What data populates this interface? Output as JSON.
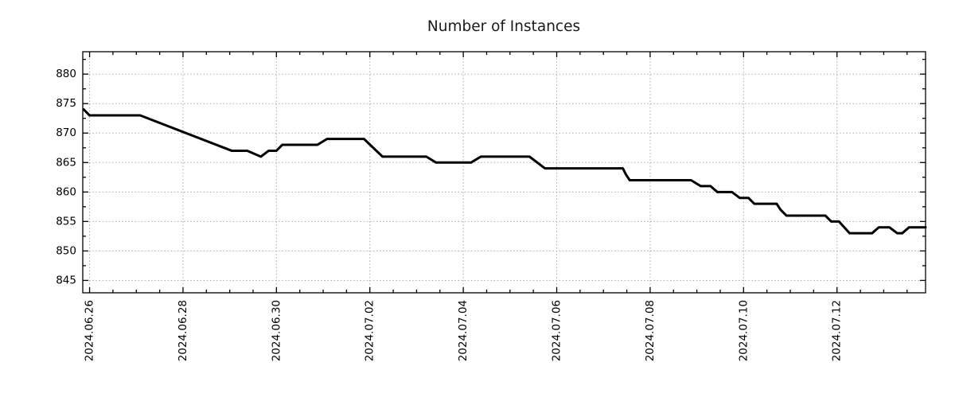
{
  "chart_data": {
    "type": "line",
    "title": "Number of Instances",
    "xlabel": "",
    "ylabel": "",
    "legend": null,
    "background_color": "#ffffff",
    "grid": {
      "show": true,
      "style": "dotted",
      "color": "#a9a9a9"
    },
    "axes_color": "#000000",
    "ylim": [
      842.9,
      883.8
    ],
    "xlim": [
      "2024-06-25 20:30",
      "2024-07-13 21:30"
    ],
    "yticks": [
      845,
      850,
      855,
      860,
      865,
      870,
      875,
      880
    ],
    "y_minor_step": 2.5,
    "x_minor_step_days": 0.5,
    "xticks": [
      {
        "date": "2024-06-26",
        "label": "2024.06.26"
      },
      {
        "date": "2024-06-28",
        "label": "2024.06.28"
      },
      {
        "date": "2024-06-30",
        "label": "2024.06.30"
      },
      {
        "date": "2024-07-02",
        "label": "2024.07.02"
      },
      {
        "date": "2024-07-04",
        "label": "2024.07.04"
      },
      {
        "date": "2024-07-06",
        "label": "2024.07.06"
      },
      {
        "date": "2024-07-08",
        "label": "2024.07.08"
      },
      {
        "date": "2024-07-10",
        "label": "2024.07.10"
      },
      {
        "date": "2024-07-12",
        "label": "2024.07.12"
      }
    ],
    "series": [
      {
        "name": "Number of Instances",
        "color": "#000000",
        "line_width": 3,
        "points": [
          [
            "2024-06-25 21:00",
            874
          ],
          [
            "2024-06-26 00:00",
            873
          ],
          [
            "2024-06-27 02:00",
            873
          ],
          [
            "2024-06-29 01:00",
            867
          ],
          [
            "2024-06-29 09:00",
            867
          ],
          [
            "2024-06-29 16:00",
            866
          ],
          [
            "2024-06-29 20:00",
            867
          ],
          [
            "2024-06-30 00:00",
            867
          ],
          [
            "2024-06-30 03:00",
            868
          ],
          [
            "2024-06-30 21:00",
            868
          ],
          [
            "2024-07-01 02:00",
            869
          ],
          [
            "2024-07-01 21:00",
            869
          ],
          [
            "2024-07-02 06:30",
            866
          ],
          [
            "2024-07-03 05:00",
            866
          ],
          [
            "2024-07-03 10:00",
            865
          ],
          [
            "2024-07-04 04:00",
            865
          ],
          [
            "2024-07-04 09:00",
            866
          ],
          [
            "2024-07-05 10:00",
            866
          ],
          [
            "2024-07-05 18:00",
            864
          ],
          [
            "2024-07-07 10:00",
            864
          ],
          [
            "2024-07-07 11:30",
            863
          ],
          [
            "2024-07-07 13:30",
            862
          ],
          [
            "2024-07-08 21:00",
            862
          ],
          [
            "2024-07-09 02:00",
            861
          ],
          [
            "2024-07-09 07:00",
            861
          ],
          [
            "2024-07-09 10:30",
            860
          ],
          [
            "2024-07-09 18:00",
            860
          ],
          [
            "2024-07-09 22:00",
            859
          ],
          [
            "2024-07-10 02:30",
            859
          ],
          [
            "2024-07-10 05:30",
            858
          ],
          [
            "2024-07-10 17:00",
            858
          ],
          [
            "2024-07-10 19:00",
            857
          ],
          [
            "2024-07-10 22:00",
            856
          ],
          [
            "2024-07-11 18:00",
            856
          ],
          [
            "2024-07-11 21:00",
            855
          ],
          [
            "2024-07-12 01:00",
            855
          ],
          [
            "2024-07-12 06:30",
            853
          ],
          [
            "2024-07-12 18:00",
            853
          ],
          [
            "2024-07-12 21:30",
            854
          ],
          [
            "2024-07-13 03:00",
            854
          ],
          [
            "2024-07-13 07:00",
            853
          ],
          [
            "2024-07-13 09:30",
            853
          ],
          [
            "2024-07-13 13:00",
            854
          ],
          [
            "2024-07-13 21:30",
            854
          ]
        ]
      }
    ]
  }
}
